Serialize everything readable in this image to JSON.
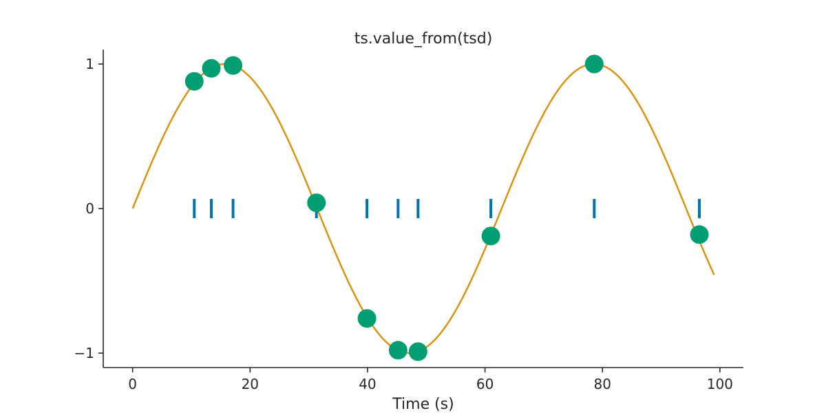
{
  "chart_data": {
    "type": "line",
    "title": "ts.value_from(tsd)",
    "xlabel": "Time (s)",
    "ylabel": "",
    "xlim": [
      -5,
      104
    ],
    "ylim": [
      -1.1,
      1.1
    ],
    "x_ticks": [
      0,
      20,
      40,
      60,
      80,
      100
    ],
    "x_tick_labels": [
      "0",
      "20",
      "40",
      "60",
      "80",
      "100"
    ],
    "y_ticks": [
      -1,
      0,
      1
    ],
    "y_tick_labels": [
      "−1",
      "0",
      "1"
    ],
    "grid": false,
    "series": [
      {
        "kind": "line",
        "color": "#de8f05",
        "function": "sin(t/10)",
        "x_start": 0,
        "x_end": 99
      },
      {
        "kind": "event-ticks",
        "color": "#0173b2",
        "y": 0,
        "x": [
          10.5,
          13.4,
          17.1,
          31.3,
          39.9,
          45.2,
          48.6,
          61.0,
          78.6,
          96.5
        ]
      },
      {
        "kind": "scatter",
        "color": "#029e73",
        "x": [
          10.5,
          13.4,
          17.1,
          31.3,
          39.9,
          45.2,
          48.6,
          61.0,
          78.6,
          96.5
        ],
        "y": [
          0.88,
          0.97,
          0.99,
          0.04,
          -0.76,
          -0.98,
          -0.99,
          -0.19,
          1.0,
          -0.18
        ]
      }
    ]
  }
}
